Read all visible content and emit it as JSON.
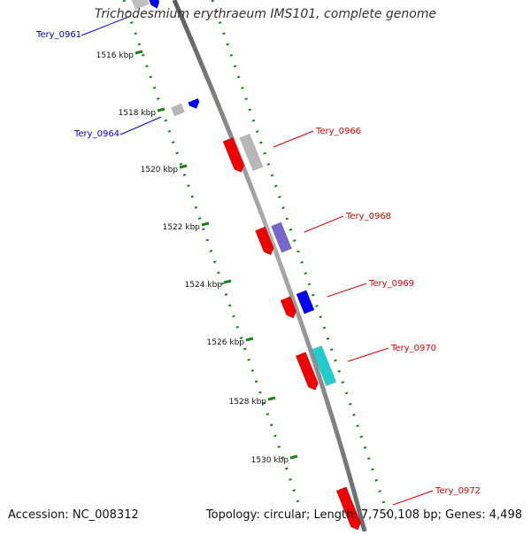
{
  "title": "Trichodesmium erythraeum IMS101, complete genome",
  "footer": {
    "accession": "Accession: NC_008312",
    "summary": "Topology: circular; Length: 7,750,108 bp; Genes: 4,498"
  },
  "colors": {
    "backbone": "#808080",
    "tick": "#1a7f1a",
    "forward_label": "#0000cc",
    "reverse_label": "#dd0000"
  },
  "ticks": [
    "1516 kbp",
    "1518 kbp",
    "1520 kbp",
    "1522 kbp",
    "1524 kbp",
    "1526 kbp",
    "1528 kbp",
    "1530 kbp"
  ],
  "gene_labels": [
    {
      "id": "g0961",
      "text": "Tery_0961",
      "strand": "forward"
    },
    {
      "id": "g0964",
      "text": "Tery_0964",
      "strand": "forward"
    },
    {
      "id": "g0966",
      "text": "Tery_0966",
      "strand": "reverse"
    },
    {
      "id": "g0968",
      "text": "Tery_0968",
      "strand": "reverse"
    },
    {
      "id": "g0969",
      "text": "Tery_0969",
      "strand": "reverse"
    },
    {
      "id": "g0970",
      "text": "Tery_0970",
      "strand": "reverse"
    },
    {
      "id": "g0972",
      "text": "Tery_0972",
      "strand": "reverse"
    }
  ],
  "features": [
    {
      "id": "f0961a",
      "color": "#0000ee",
      "icon": "arrow"
    },
    {
      "id": "f0961b",
      "color": "#c0c0c0",
      "icon": "box"
    },
    {
      "id": "f0964a",
      "color": "#b8b8b8",
      "icon": "box"
    },
    {
      "id": "f0964b",
      "color": "#0000ee",
      "icon": "arrow"
    },
    {
      "id": "f0966a",
      "color": "#ee0000",
      "icon": "arrow"
    },
    {
      "id": "f0966b",
      "color": "#b8b8b8",
      "icon": "box"
    },
    {
      "id": "f0968a",
      "color": "#ee0000",
      "icon": "arrow"
    },
    {
      "id": "f0968b",
      "color": "#7766cc",
      "icon": "box"
    },
    {
      "id": "f0969a",
      "color": "#ee0000",
      "icon": "arrow"
    },
    {
      "id": "f0969b",
      "color": "#0000ee",
      "icon": "box"
    },
    {
      "id": "f0970a",
      "color": "#ee0000",
      "icon": "arrow"
    },
    {
      "id": "f0970b",
      "color": "#22cccc",
      "icon": "box"
    },
    {
      "id": "f0972a",
      "color": "#ee0000",
      "icon": "arrow"
    }
  ]
}
